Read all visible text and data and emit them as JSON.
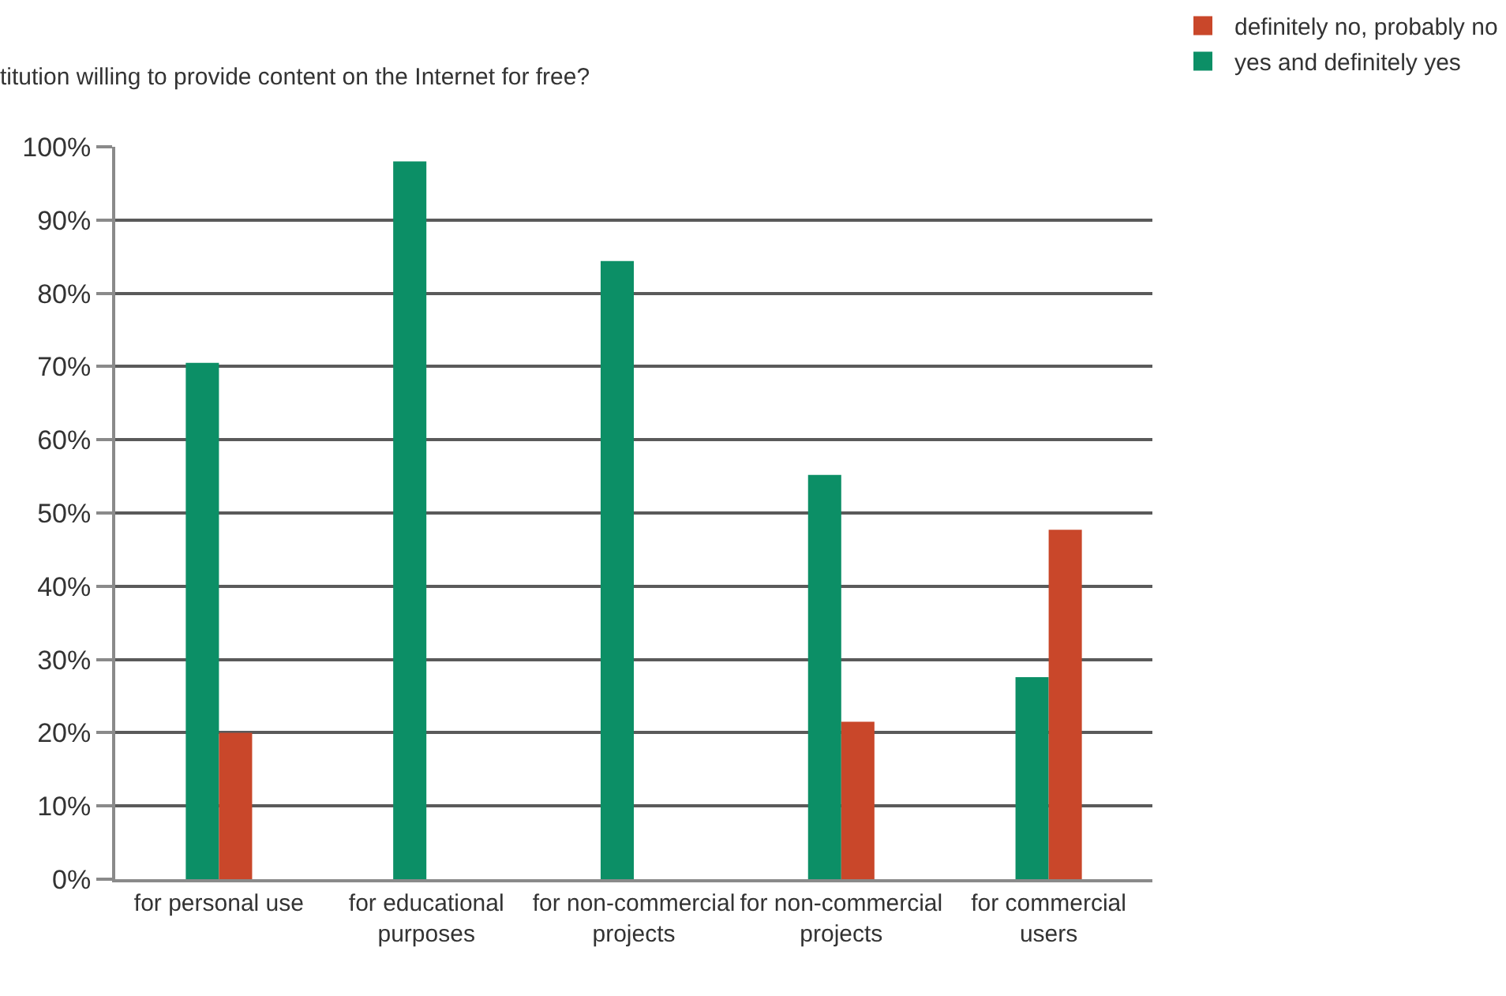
{
  "chart_data": {
    "type": "bar",
    "title": "titution willing to provide content on the Internet for free?",
    "categories": [
      "for personal use",
      "for educational purposes",
      "for non-commercial projects",
      "for non-commercial projects",
      "for commercial users"
    ],
    "series": [
      {
        "name": "yes and definitely yes",
        "color": "#0c8f66",
        "values": [
          70.5,
          98,
          84.4,
          55.2,
          27.6
        ]
      },
      {
        "name": "definitely no, probably no",
        "color": "#c9472a",
        "values": [
          20,
          null,
          null,
          21.5,
          47.7
        ]
      }
    ],
    "ylim": [
      0,
      100
    ],
    "yticks": [
      {
        "value": 0,
        "label": "0%"
      },
      {
        "value": 10,
        "label": "10%"
      },
      {
        "value": 20,
        "label": "20%"
      },
      {
        "value": 30,
        "label": "30%"
      },
      {
        "value": 40,
        "label": "40%"
      },
      {
        "value": 50,
        "label": "50%"
      },
      {
        "value": 60,
        "label": "60%"
      },
      {
        "value": 70,
        "label": "70%"
      },
      {
        "value": 80,
        "label": "80%"
      },
      {
        "value": 90,
        "label": "90%"
      },
      {
        "value": 100,
        "label": "100%"
      }
    ],
    "grid": "y",
    "legend": "top right"
  }
}
